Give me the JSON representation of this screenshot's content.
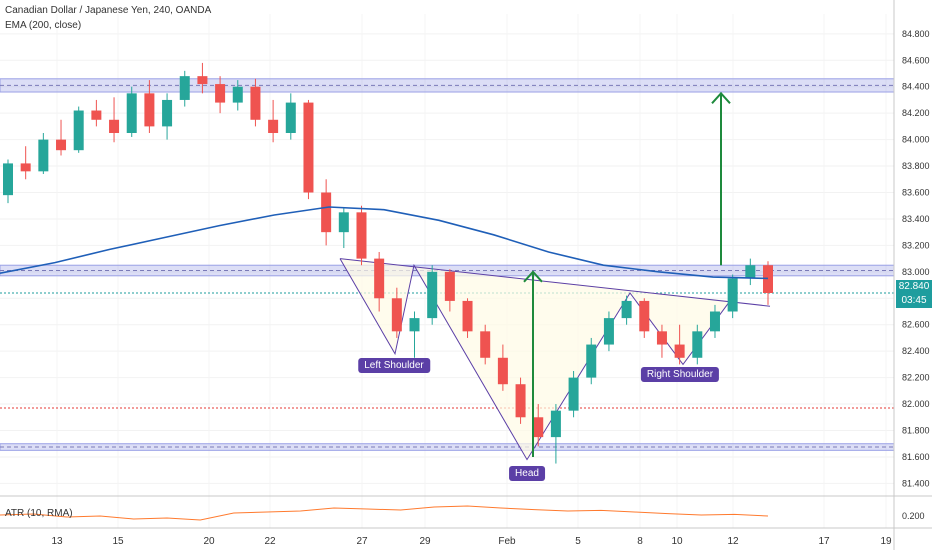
{
  "header": {
    "title": "Canadian Dollar / Japanese Yen, 240, OANDA",
    "ema_label": "EMA (200, close)",
    "atr_label": "ATR (10, RMA)"
  },
  "last_price": {
    "price": "82.840",
    "countdown": "03:45"
  },
  "annotations": {
    "left_shoulder": "Left Shoulder",
    "head": "Head",
    "right_shoulder": "Right Shoulder"
  },
  "colors": {
    "up": "#26a69a",
    "down": "#ef5350",
    "ema": "#1f5fb8",
    "zone": "#9aa0e6",
    "arrow": "#1e8a3c",
    "pattern_line": "#5b3fa6",
    "atr": "#ff7a2e"
  },
  "chart_data": {
    "type": "candlestick",
    "ylim": [
      81.35,
      84.95
    ],
    "y_ticks": [
      "84.800",
      "84.600",
      "84.400",
      "84.200",
      "84.000",
      "83.800",
      "83.600",
      "83.400",
      "83.200",
      "83.000",
      "82.800",
      "82.600",
      "82.400",
      "82.200",
      "82.000",
      "81.800",
      "81.600",
      "81.400"
    ],
    "x_ticks": [
      "13",
      "15",
      "20",
      "22",
      "27",
      "29",
      "Feb",
      "5",
      "8",
      "10",
      "12",
      "17",
      "19"
    ],
    "zones": [
      [
        84.36,
        84.46
      ],
      [
        82.97,
        83.05
      ],
      [
        81.65,
        81.7
      ]
    ],
    "red_dotted_level": 81.97,
    "ema_200": [
      82.99,
      83.07,
      83.17,
      83.26,
      83.35,
      83.43,
      83.49,
      83.47,
      83.39,
      83.28,
      83.15,
      83.05,
      83.0,
      82.96,
      82.95
    ],
    "candles": [
      [
        83.58,
        83.85,
        83.52,
        83.82
      ],
      [
        83.82,
        83.95,
        83.7,
        83.76
      ],
      [
        83.76,
        84.05,
        83.74,
        84.0
      ],
      [
        84.0,
        84.15,
        83.88,
        83.92
      ],
      [
        83.92,
        84.25,
        83.9,
        84.22
      ],
      [
        84.22,
        84.3,
        84.1,
        84.15
      ],
      [
        84.15,
        84.32,
        83.98,
        84.05
      ],
      [
        84.05,
        84.4,
        84.02,
        84.35
      ],
      [
        84.35,
        84.45,
        84.05,
        84.1
      ],
      [
        84.1,
        84.35,
        84.0,
        84.3
      ],
      [
        84.3,
        84.52,
        84.25,
        84.48
      ],
      [
        84.48,
        84.58,
        84.35,
        84.42
      ],
      [
        84.42,
        84.48,
        84.2,
        84.28
      ],
      [
        84.28,
        84.45,
        84.22,
        84.4
      ],
      [
        84.4,
        84.46,
        84.1,
        84.15
      ],
      [
        84.15,
        84.3,
        83.98,
        84.05
      ],
      [
        84.05,
        84.35,
        84.0,
        84.28
      ],
      [
        84.28,
        84.3,
        83.55,
        83.6
      ],
      [
        83.6,
        83.7,
        83.2,
        83.3
      ],
      [
        83.3,
        83.48,
        83.18,
        83.45
      ],
      [
        83.45,
        83.5,
        83.05,
        83.1
      ],
      [
        83.1,
        83.15,
        82.7,
        82.8
      ],
      [
        82.8,
        82.88,
        82.5,
        82.55
      ],
      [
        82.55,
        82.7,
        82.35,
        82.65
      ],
      [
        82.65,
        83.05,
        82.6,
        83.0
      ],
      [
        83.0,
        83.02,
        82.7,
        82.78
      ],
      [
        82.78,
        82.8,
        82.5,
        82.55
      ],
      [
        82.55,
        82.6,
        82.3,
        82.35
      ],
      [
        82.35,
        82.45,
        82.1,
        82.15
      ],
      [
        82.15,
        82.2,
        81.85,
        81.9
      ],
      [
        81.9,
        82.0,
        81.68,
        81.75
      ],
      [
        81.75,
        82.0,
        81.55,
        81.95
      ],
      [
        81.95,
        82.25,
        81.9,
        82.2
      ],
      [
        82.2,
        82.5,
        82.15,
        82.45
      ],
      [
        82.45,
        82.7,
        82.4,
        82.65
      ],
      [
        82.65,
        82.82,
        82.6,
        82.78
      ],
      [
        82.78,
        82.8,
        82.5,
        82.55
      ],
      [
        82.55,
        82.6,
        82.35,
        82.45
      ],
      [
        82.45,
        82.6,
        82.3,
        82.35
      ],
      [
        82.35,
        82.6,
        82.3,
        82.55
      ],
      [
        82.55,
        82.75,
        82.5,
        82.7
      ],
      [
        82.7,
        82.98,
        82.65,
        82.95
      ],
      [
        82.95,
        83.1,
        82.9,
        83.05
      ],
      [
        83.05,
        83.08,
        82.75,
        82.84
      ]
    ],
    "atr_value": "0.200",
    "atr": [
      0.205,
      0.21,
      0.195,
      0.2,
      0.185,
      0.19,
      0.18,
      0.215,
      0.22,
      0.225,
      0.24,
      0.235,
      0.23,
      0.245,
      0.25,
      0.24,
      0.232,
      0.225,
      0.228,
      0.22,
      0.212,
      0.205,
      0.208,
      0.2
    ]
  }
}
